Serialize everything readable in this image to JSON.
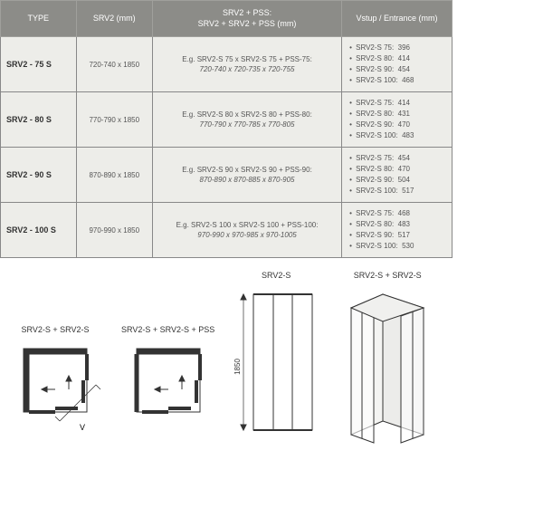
{
  "table": {
    "headers": {
      "type": "TYPE",
      "srv2": "SRV2 (mm)",
      "combo1": "SRV2 + PSS:",
      "combo2": "SRV2 + SRV2 + PSS (mm)",
      "entrance": "Vstup / Entrance (mm)"
    },
    "rows": [
      {
        "type": "SRV2 - 75 S",
        "srv2": "720-740 x 1850",
        "combo_eg": "E.g. SRV2-S 75 x SRV2-S 75 + PSS-75:",
        "combo_dim": "720-740 x 720-735 x 720-755",
        "entrance": [
          {
            "k": "SRV2-S 75:",
            "v": "396"
          },
          {
            "k": "SRV2-S 80:",
            "v": "414"
          },
          {
            "k": "SRV2-S 90:",
            "v": "454"
          },
          {
            "k": "SRV2-S 100:",
            "v": "468"
          }
        ]
      },
      {
        "type": "SRV2 - 80 S",
        "srv2": "770-790 x 1850",
        "combo_eg": "E.g. SRV2-S 80 x SRV2-S 80 + PSS-80:",
        "combo_dim": "770-790 x 770-785 x 770-805",
        "entrance": [
          {
            "k": "SRV2-S 75:",
            "v": "414"
          },
          {
            "k": "SRV2-S 80:",
            "v": "431"
          },
          {
            "k": "SRV2-S 90:",
            "v": "470"
          },
          {
            "k": "SRV2-S 100:",
            "v": "483"
          }
        ]
      },
      {
        "type": "SRV2 - 90 S",
        "srv2": "870-890 x 1850",
        "combo_eg": "E.g. SRV2-S 90 x SRV2-S 90 + PSS-90:",
        "combo_dim": "870-890 x 870-885 x 870-905",
        "entrance": [
          {
            "k": "SRV2-S 75:",
            "v": "454"
          },
          {
            "k": "SRV2-S 80:",
            "v": "470"
          },
          {
            "k": "SRV2-S 90:",
            "v": "504"
          },
          {
            "k": "SRV2-S 100:",
            "v": "517"
          }
        ]
      },
      {
        "type": "SRV2 - 100 S",
        "srv2": "970-990 x 1850",
        "combo_eg": "E.g. SRV2-S 100 x SRV2-S 100 + PSS-100:",
        "combo_dim": "970-990 x 970-985 x 970-1005",
        "entrance": [
          {
            "k": "SRV2-S 75:",
            "v": "468"
          },
          {
            "k": "SRV2-S 80:",
            "v": "483"
          },
          {
            "k": "SRV2-S 90:",
            "v": "517"
          },
          {
            "k": "SRV2-S 100:",
            "v": "530"
          }
        ]
      }
    ]
  },
  "diagrams": {
    "topview1_label": "SRV2-S + SRV2-S",
    "topview2_label": "SRV2-S + SRV2-S + PSS",
    "front_label": "SRV2-S",
    "iso_label": "SRV2-S + SRV2-S",
    "height": "1850",
    "v_label": "V"
  },
  "colors": {
    "header_bg": "#8c8c88",
    "header_text": "#ffffff",
    "cell_bg": "#edede9",
    "border": "#888888",
    "line": "#333333"
  }
}
